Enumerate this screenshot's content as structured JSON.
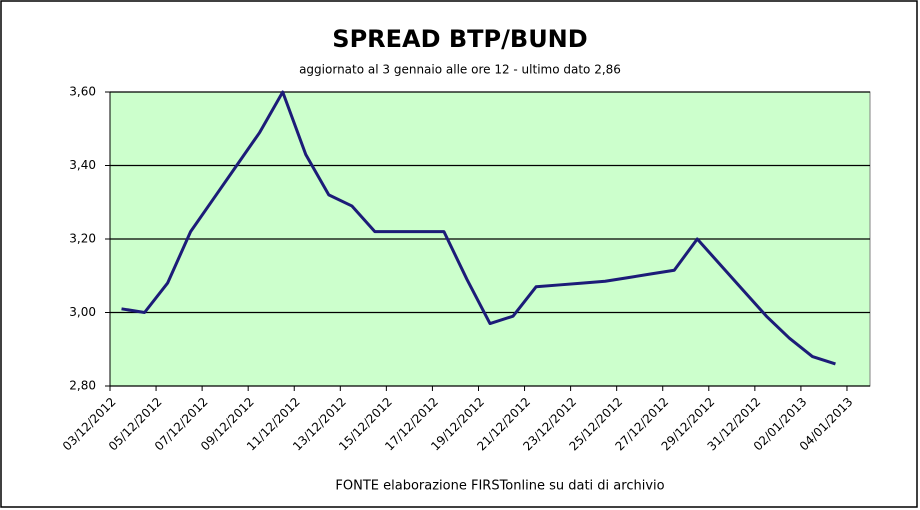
{
  "chart_data": {
    "type": "line",
    "title": "SPREAD  BTP/BUND",
    "subtitle": "aggiornato al 3 gennaio alle ore 12 - ultimo dato 2,86",
    "source": "FONTE elaborazione FIRSTonline su dati di archivio",
    "categories": [
      "03/12/2012",
      null,
      "05/12/2012",
      null,
      "07/12/2012",
      null,
      "09/12/2012",
      null,
      "11/12/2012",
      null,
      "13/12/2012",
      null,
      "15/12/2012",
      null,
      "17/12/2012",
      null,
      "19/12/2012",
      null,
      "21/12/2012",
      null,
      "23/12/2012",
      null,
      "25/12/2012",
      null,
      "27/12/2012",
      null,
      "29/12/2012",
      null,
      "31/12/2012",
      null,
      "02/01/2013",
      null,
      "04/01/2013"
    ],
    "series": [
      {
        "name": "Spread",
        "color": "#1c1c78",
        "values": [
          3.01,
          3.0,
          3.08,
          3.22,
          3.31,
          3.4,
          3.49,
          3.6,
          3.43,
          3.32,
          3.29,
          3.22,
          3.22,
          3.22,
          3.22,
          3.09,
          2.97,
          2.99,
          3.07,
          3.075,
          3.08,
          3.085,
          3.095,
          3.105,
          3.115,
          3.2,
          3.13,
          3.06,
          2.99,
          2.93,
          2.88,
          2.86,
          null
        ]
      }
    ],
    "ylim": [
      2.8,
      3.6
    ],
    "yticks": [
      {
        "value": 2.8,
        "label": "2,80"
      },
      {
        "value": 3.0,
        "label": "3,00"
      },
      {
        "value": 3.2,
        "label": "3,20"
      },
      {
        "value": 3.4,
        "label": "3,40"
      },
      {
        "value": 3.6,
        "label": "3,60"
      }
    ],
    "grid": true,
    "plot_color": "#ccffcc"
  }
}
